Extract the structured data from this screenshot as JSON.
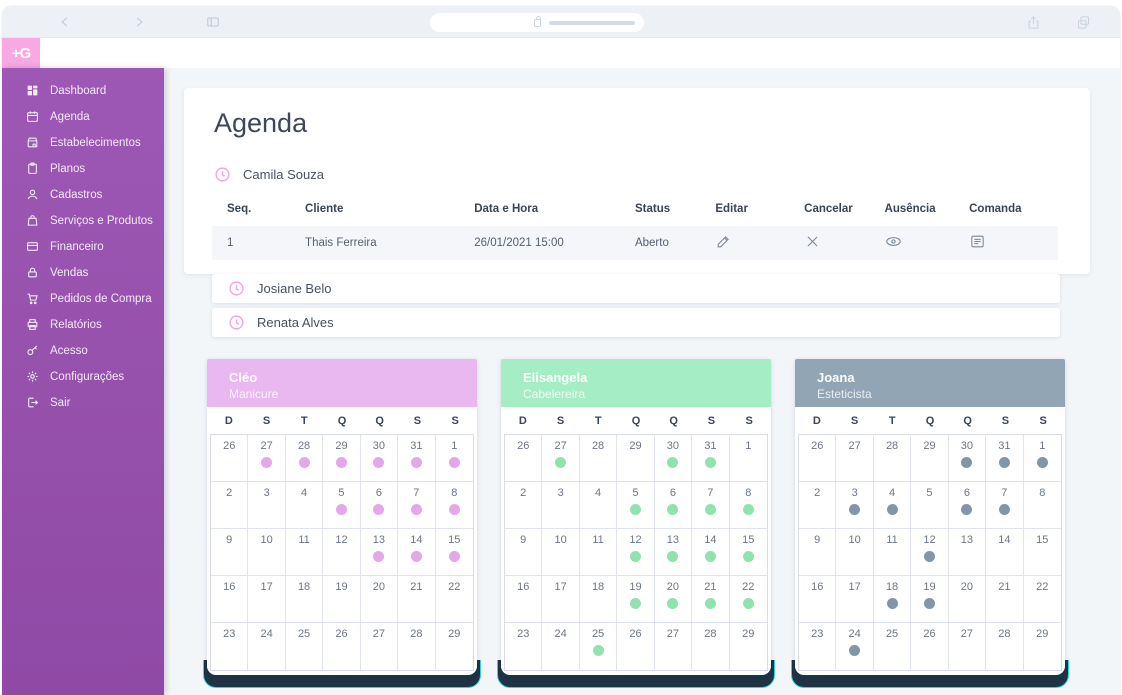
{
  "logo": {
    "text": "+G",
    "bg_color": "#f8a9e4"
  },
  "browser": {
    "lock_icon": "lock-icon",
    "back_icon": "back-icon",
    "forward_icon": "forward-icon",
    "panel_icon": "sidebar-toggle-icon",
    "share_icon": "share-icon",
    "tabs_icon": "tabs-icon"
  },
  "sidebar": {
    "bg_color": "#9550ab",
    "items": [
      {
        "id": "dashboard",
        "label": "Dashboard",
        "icon": "dashboard-icon"
      },
      {
        "id": "agenda",
        "label": "Agenda",
        "icon": "calendar-icon"
      },
      {
        "id": "estabelecimentos",
        "label": "Estabelecimentos",
        "icon": "store-icon"
      },
      {
        "id": "planos",
        "label": "Planos",
        "icon": "clipboard-icon"
      },
      {
        "id": "cadastros",
        "label": "Cadastros",
        "icon": "person-icon"
      },
      {
        "id": "servicos-e-produtos",
        "label": "Serviços e Produtos",
        "icon": "bag-icon"
      },
      {
        "id": "financeiro",
        "label": "Financeiro",
        "icon": "card-icon"
      },
      {
        "id": "vendas",
        "label": "Vendas",
        "icon": "lock-icon"
      },
      {
        "id": "pedidos-de-compra",
        "label": "Pedidos de Compra",
        "icon": "cart-icon"
      },
      {
        "id": "relatorios",
        "label": "Relatórios",
        "icon": "printer-icon"
      },
      {
        "id": "acesso",
        "label": "Acesso",
        "icon": "key-icon"
      },
      {
        "id": "configuracoes",
        "label": "Configurações",
        "icon": "gear-icon"
      },
      {
        "id": "sair",
        "label": "Sair",
        "icon": "logout-icon"
      }
    ]
  },
  "page": {
    "title": "Agenda"
  },
  "professionals": [
    {
      "name": "Camila Souza",
      "expanded": true
    },
    {
      "name": "Josiane Belo",
      "expanded": false
    },
    {
      "name": "Renata Alves",
      "expanded": false
    }
  ],
  "appointments_table": {
    "columns": [
      "Seq.",
      "Cliente",
      "Data e Hora",
      "Status",
      "Editar",
      "Cancelar",
      "Ausência",
      "Comanda"
    ],
    "action_icons": [
      "pencil-icon",
      "cancel-x-icon",
      "eye-icon",
      "comanda-icon"
    ],
    "rows": [
      {
        "seq": "1",
        "cliente": "Thais Ferreira",
        "data_hora": "26/01/2021 15:00",
        "status": "Aberto"
      }
    ]
  },
  "day_headers": [
    "D",
    "S",
    "T",
    "Q",
    "Q",
    "S",
    "S"
  ],
  "calendar_weeks": [
    [
      26,
      27,
      28,
      29,
      30,
      31,
      1
    ],
    [
      2,
      3,
      4,
      5,
      6,
      7,
      8
    ],
    [
      9,
      10,
      11,
      12,
      13,
      14,
      15
    ],
    [
      16,
      17,
      18,
      19,
      20,
      21,
      22
    ],
    [
      23,
      24,
      25,
      26,
      27,
      28,
      29
    ]
  ],
  "calendars": [
    {
      "name": "Cléo",
      "role": "Manicure",
      "header_color": "#eab8f1",
      "dot_color": "#e4a7ea",
      "dots": [
        [
          0,
          1,
          1,
          1,
          1,
          1,
          1
        ],
        [
          0,
          0,
          0,
          1,
          1,
          1,
          1
        ],
        [
          0,
          0,
          0,
          0,
          1,
          1,
          1
        ],
        [
          0,
          0,
          0,
          0,
          0,
          0,
          0
        ],
        [
          0,
          0,
          0,
          0,
          0,
          0,
          0
        ]
      ]
    },
    {
      "name": "Elisangela",
      "role": "Cabelereira",
      "header_color": "#a5edc4",
      "dot_color": "#90e3ae",
      "dots": [
        [
          0,
          1,
          0,
          0,
          1,
          1,
          0
        ],
        [
          0,
          0,
          0,
          1,
          1,
          1,
          1
        ],
        [
          0,
          0,
          0,
          1,
          1,
          1,
          1
        ],
        [
          0,
          0,
          0,
          1,
          1,
          1,
          1
        ],
        [
          0,
          0,
          1,
          0,
          0,
          0,
          0
        ]
      ]
    },
    {
      "name": "Joana",
      "role": "Esteticista",
      "header_color": "#91a5b4",
      "dot_color": "#8196a7",
      "dots": [
        [
          0,
          0,
          0,
          0,
          1,
          1,
          1
        ],
        [
          0,
          1,
          1,
          0,
          1,
          1,
          0
        ],
        [
          0,
          0,
          0,
          1,
          0,
          0,
          0
        ],
        [
          0,
          0,
          1,
          1,
          0,
          0,
          0
        ],
        [
          0,
          1,
          0,
          0,
          0,
          0,
          0
        ]
      ]
    }
  ]
}
